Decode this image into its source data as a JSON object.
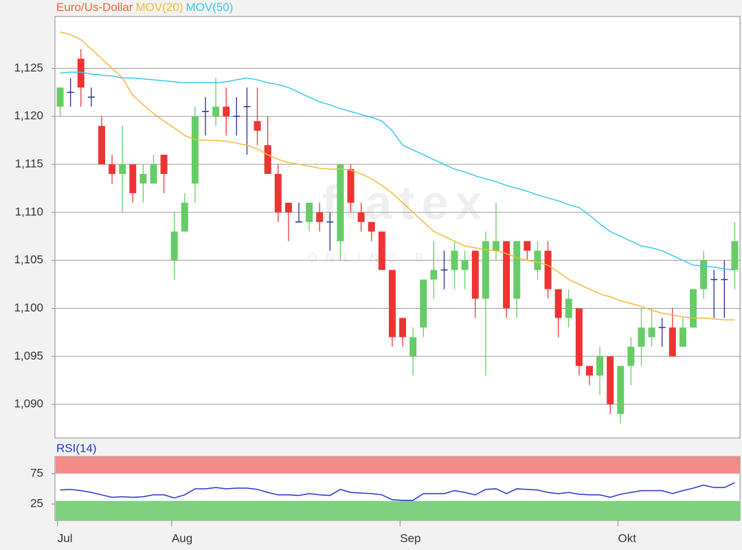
{
  "chart_data": [
    {
      "type": "candlestick",
      "watermark": "flatex",
      "watermark_subtitle": "ONLINE BROKER",
      "categories": [
        "Jul",
        null,
        null,
        null,
        null,
        null,
        null,
        null,
        null,
        null,
        null,
        "Aug",
        null,
        null,
        null,
        null,
        null,
        null,
        null,
        null,
        null,
        null,
        null,
        null,
        null,
        null,
        null,
        null,
        null,
        null,
        null,
        null,
        null,
        "Sep",
        null,
        null,
        null,
        null,
        null,
        null,
        null,
        null,
        null,
        null,
        null,
        null,
        null,
        null,
        null,
        null,
        null,
        null,
        null,
        null,
        "Okt",
        null,
        null,
        null,
        null,
        null,
        null,
        null,
        null,
        null,
        null,
        null
      ],
      "series": [
        {
          "name": "Euro/Us-Dollar",
          "color": "#f0643c",
          "up_color": "#66cc66",
          "down_color": "#ee3333",
          "doji_color": "#2a2a9a",
          "open": [
            1.121,
            1.1225,
            1.126,
            1.122,
            1.119,
            1.115,
            1.114,
            1.115,
            1.113,
            1.113,
            1.116,
            1.105,
            1.108,
            1.113,
            1.1205,
            1.12,
            1.121,
            1.12,
            1.121,
            1.1195,
            1.117,
            1.114,
            1.111,
            1.109,
            1.109,
            1.11,
            1.109,
            1.107,
            1.1145,
            1.11,
            1.109,
            1.108,
            1.104,
            1.099,
            1.095,
            1.098,
            1.103,
            1.104,
            1.104,
            1.104,
            1.106,
            1.101,
            1.106,
            1.107,
            1.101,
            1.107,
            1.104,
            1.106,
            1.102,
            1.099,
            1.1,
            1.094,
            1.093,
            1.095,
            1.089,
            1.094,
            1.096,
            1.097,
            1.098,
            1.098,
            1.096,
            1.098,
            1.102,
            1.103,
            1.103,
            1.104
          ],
          "high": [
            1.123,
            1.124,
            1.127,
            1.123,
            1.12,
            1.116,
            1.119,
            1.115,
            1.115,
            1.116,
            1.116,
            1.11,
            1.112,
            1.121,
            1.122,
            1.124,
            1.123,
            1.122,
            1.123,
            1.123,
            1.12,
            1.115,
            1.111,
            1.111,
            1.111,
            1.111,
            1.11,
            1.115,
            1.115,
            1.111,
            1.109,
            1.108,
            1.104,
            1.099,
            1.098,
            1.103,
            1.107,
            1.106,
            1.107,
            1.106,
            1.106,
            1.108,
            1.111,
            1.107,
            1.107,
            1.107,
            1.107,
            1.107,
            1.102,
            1.102,
            1.1,
            1.094,
            1.096,
            1.095,
            1.094,
            1.097,
            1.1,
            1.1,
            1.099,
            1.1,
            1.099,
            1.102,
            1.106,
            1.104,
            1.105,
            1.109
          ],
          "low": [
            1.12,
            1.121,
            1.121,
            1.121,
            1.115,
            1.113,
            1.11,
            1.111,
            1.111,
            1.113,
            1.112,
            1.103,
            1.108,
            1.111,
            1.118,
            1.119,
            1.118,
            1.118,
            1.116,
            1.117,
            1.114,
            1.109,
            1.107,
            1.109,
            1.108,
            1.108,
            1.106,
            1.105,
            1.11,
            1.108,
            1.107,
            1.104,
            1.096,
            1.096,
            1.093,
            1.097,
            1.101,
            1.102,
            1.102,
            1.102,
            1.099,
            1.093,
            1.105,
            1.099,
            1.099,
            1.105,
            1.103,
            1.101,
            1.097,
            1.098,
            1.093,
            1.092,
            1.091,
            1.089,
            1.088,
            1.092,
            1.094,
            1.096,
            1.096,
            1.095,
            1.096,
            1.098,
            1.101,
            1.099,
            1.099,
            1.102
          ],
          "close": [
            1.123,
            1.1225,
            1.123,
            1.122,
            1.115,
            1.114,
            1.115,
            1.112,
            1.114,
            1.115,
            1.114,
            1.108,
            1.111,
            1.12,
            1.1205,
            1.121,
            1.12,
            1.12,
            1.121,
            1.1185,
            1.114,
            1.11,
            1.11,
            1.109,
            1.111,
            1.109,
            1.109,
            1.115,
            1.111,
            1.109,
            1.108,
            1.104,
            1.097,
            1.097,
            1.097,
            1.103,
            1.104,
            1.104,
            1.106,
            1.105,
            1.101,
            1.107,
            1.107,
            1.1,
            1.107,
            1.106,
            1.106,
            1.102,
            1.099,
            1.101,
            1.094,
            1.093,
            1.095,
            1.09,
            1.094,
            1.096,
            1.098,
            1.098,
            1.098,
            1.095,
            1.098,
            1.102,
            1.105,
            1.103,
            1.103,
            1.107
          ]
        },
        {
          "name": "MOV(20)",
          "type": "line",
          "color": "#f5b935",
          "values": [
            1.1288,
            1.1285,
            1.128,
            1.127,
            1.126,
            1.125,
            1.124,
            1.1222,
            1.1212,
            1.1203,
            1.1195,
            1.1188,
            1.118,
            1.1176,
            1.1175,
            1.1175,
            1.1174,
            1.1172,
            1.117,
            1.1166,
            1.116,
            1.1155,
            1.1152,
            1.115,
            1.1148,
            1.1146,
            1.1145,
            1.1145,
            1.1144,
            1.114,
            1.1135,
            1.1128,
            1.112,
            1.111,
            1.11,
            1.109,
            1.108,
            1.1075,
            1.107,
            1.1065,
            1.1063,
            1.1061,
            1.106,
            1.1057,
            1.1053,
            1.105,
            1.1048,
            1.1045,
            1.1038,
            1.103,
            1.1025,
            1.102,
            1.1015,
            1.1012,
            1.1008,
            1.1005,
            1.1002,
            1.0998,
            1.0995,
            1.0993,
            1.0991,
            1.099,
            1.099,
            1.0989,
            1.0988,
            1.0988
          ]
        },
        {
          "name": "MOV(50)",
          "type": "line",
          "color": "#3cc8ee",
          "values": [
            1.1245,
            1.1246,
            1.1246,
            1.1244,
            1.1243,
            1.1242,
            1.124,
            1.124,
            1.1239,
            1.1238,
            1.1237,
            1.1236,
            1.1235,
            1.1235,
            1.1235,
            1.1235,
            1.1236,
            1.1238,
            1.124,
            1.1238,
            1.1235,
            1.1233,
            1.123,
            1.1225,
            1.122,
            1.1215,
            1.1212,
            1.1208,
            1.1205,
            1.1202,
            1.1199,
            1.1195,
            1.1185,
            1.117,
            1.1165,
            1.116,
            1.1155,
            1.115,
            1.1145,
            1.1142,
            1.1138,
            1.1135,
            1.1132,
            1.1128,
            1.1125,
            1.1122,
            1.1118,
            1.1115,
            1.1112,
            1.1108,
            1.1105,
            1.1097,
            1.1088,
            1.108,
            1.1075,
            1.107,
            1.1065,
            1.1063,
            1.106,
            1.1055,
            1.105,
            1.1045,
            1.1044,
            1.1043,
            1.1041,
            1.104
          ]
        }
      ],
      "ylim": [
        1.0865,
        1.1304
      ],
      "yticks": [
        {
          "value": 1.09,
          "label": "1,090"
        },
        {
          "value": 1.095,
          "label": "1,095"
        },
        {
          "value": 1.1,
          "label": "1,100"
        },
        {
          "value": 1.105,
          "label": "1,105"
        },
        {
          "value": 1.11,
          "label": "1,110"
        },
        {
          "value": 1.115,
          "label": "1,115"
        },
        {
          "value": 1.12,
          "label": "1,120"
        },
        {
          "value": 1.125,
          "label": "1,125"
        }
      ],
      "grid": true
    },
    {
      "type": "line",
      "series": [
        {
          "name": "RSI(14)",
          "color": "#2233cc",
          "values": [
            48,
            49,
            47,
            44,
            40,
            36,
            37,
            36,
            37,
            40,
            40,
            35,
            40,
            50,
            50,
            52,
            50,
            51,
            51,
            49,
            44,
            40,
            40,
            39,
            42,
            40,
            39,
            49,
            44,
            43,
            42,
            40,
            32,
            31,
            31,
            42,
            42,
            42,
            47,
            44,
            40,
            49,
            50,
            42,
            50,
            49,
            48,
            44,
            42,
            44,
            41,
            40,
            40,
            36,
            41,
            44,
            47,
            47,
            47,
            42,
            47,
            51,
            56,
            52,
            52,
            60
          ]
        }
      ],
      "ylim": [
        -2,
        103
      ],
      "yticks": [
        25,
        75
      ],
      "bands": [
        {
          "from": 75,
          "to": 103,
          "color": "#f48a8a"
        },
        {
          "from": -2,
          "to": 30,
          "color": "#7fd07f"
        }
      ]
    }
  ]
}
